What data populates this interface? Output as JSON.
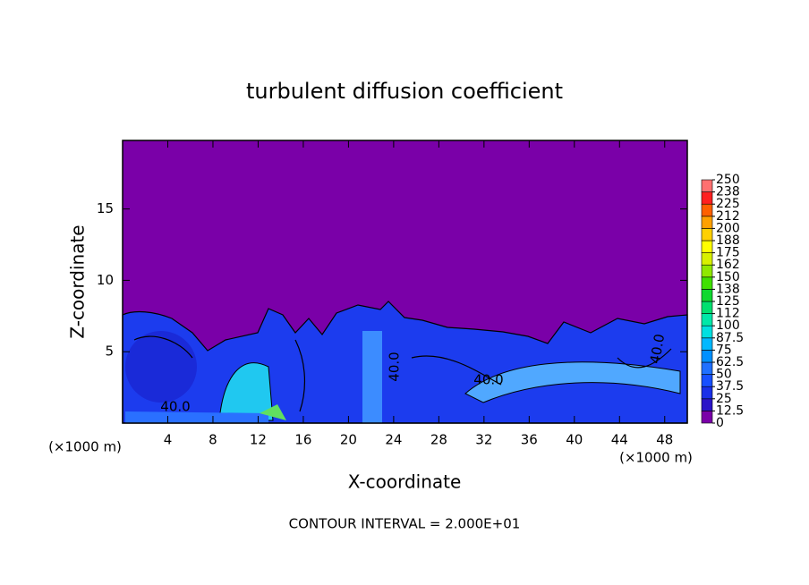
{
  "chart_data": {
    "type": "heatmap",
    "title": "turbulent diffusion coefficient",
    "x_label": "X-coordinate",
    "y_label": "Z-coordinate",
    "x_unit_left": "(×1000 m)",
    "x_unit_right": "(×1000 m)",
    "footer": "CONTOUR INTERVAL = 2.000E+01",
    "contour_labels": [
      "40.0",
      "40.0",
      "40.0",
      "40.0"
    ],
    "xlim": [
      0,
      50
    ],
    "xticks": [
      4,
      8,
      12,
      16,
      20,
      24,
      28,
      32,
      36,
      40,
      44,
      48
    ],
    "ylim": [
      0,
      19.8
    ],
    "yticks": [
      5,
      10,
      15
    ],
    "colorbar": {
      "lim": [
        0,
        250
      ],
      "ticks": [
        0,
        12.5,
        25,
        37.5,
        50,
        62.5,
        75,
        87.5,
        100,
        {
          "value": 112.5,
          "label": "112"
        },
        125,
        {
          "value": 137.5,
          "label": "138"
        },
        150,
        {
          "value": 162.5,
          "label": "162"
        },
        175,
        {
          "value": 187.5,
          "label": "188"
        },
        200,
        {
          "value": 212.5,
          "label": "212"
        },
        225,
        {
          "value": 237.5,
          "label": "238"
        },
        250
      ],
      "colors": [
        "#7a00a8",
        "#2a14c8",
        "#1a30e8",
        "#1850ff",
        "#2070ff",
        "#0090ff",
        "#00b8ff",
        "#00e0e0",
        "#00e8a8",
        "#00e070",
        "#10d830",
        "#40e000",
        "#90e800",
        "#d8f000",
        "#ffff00",
        "#ffd000",
        "#ffa000",
        "#ff6000",
        "#ff2020",
        "#ff7070"
      ]
    }
  }
}
